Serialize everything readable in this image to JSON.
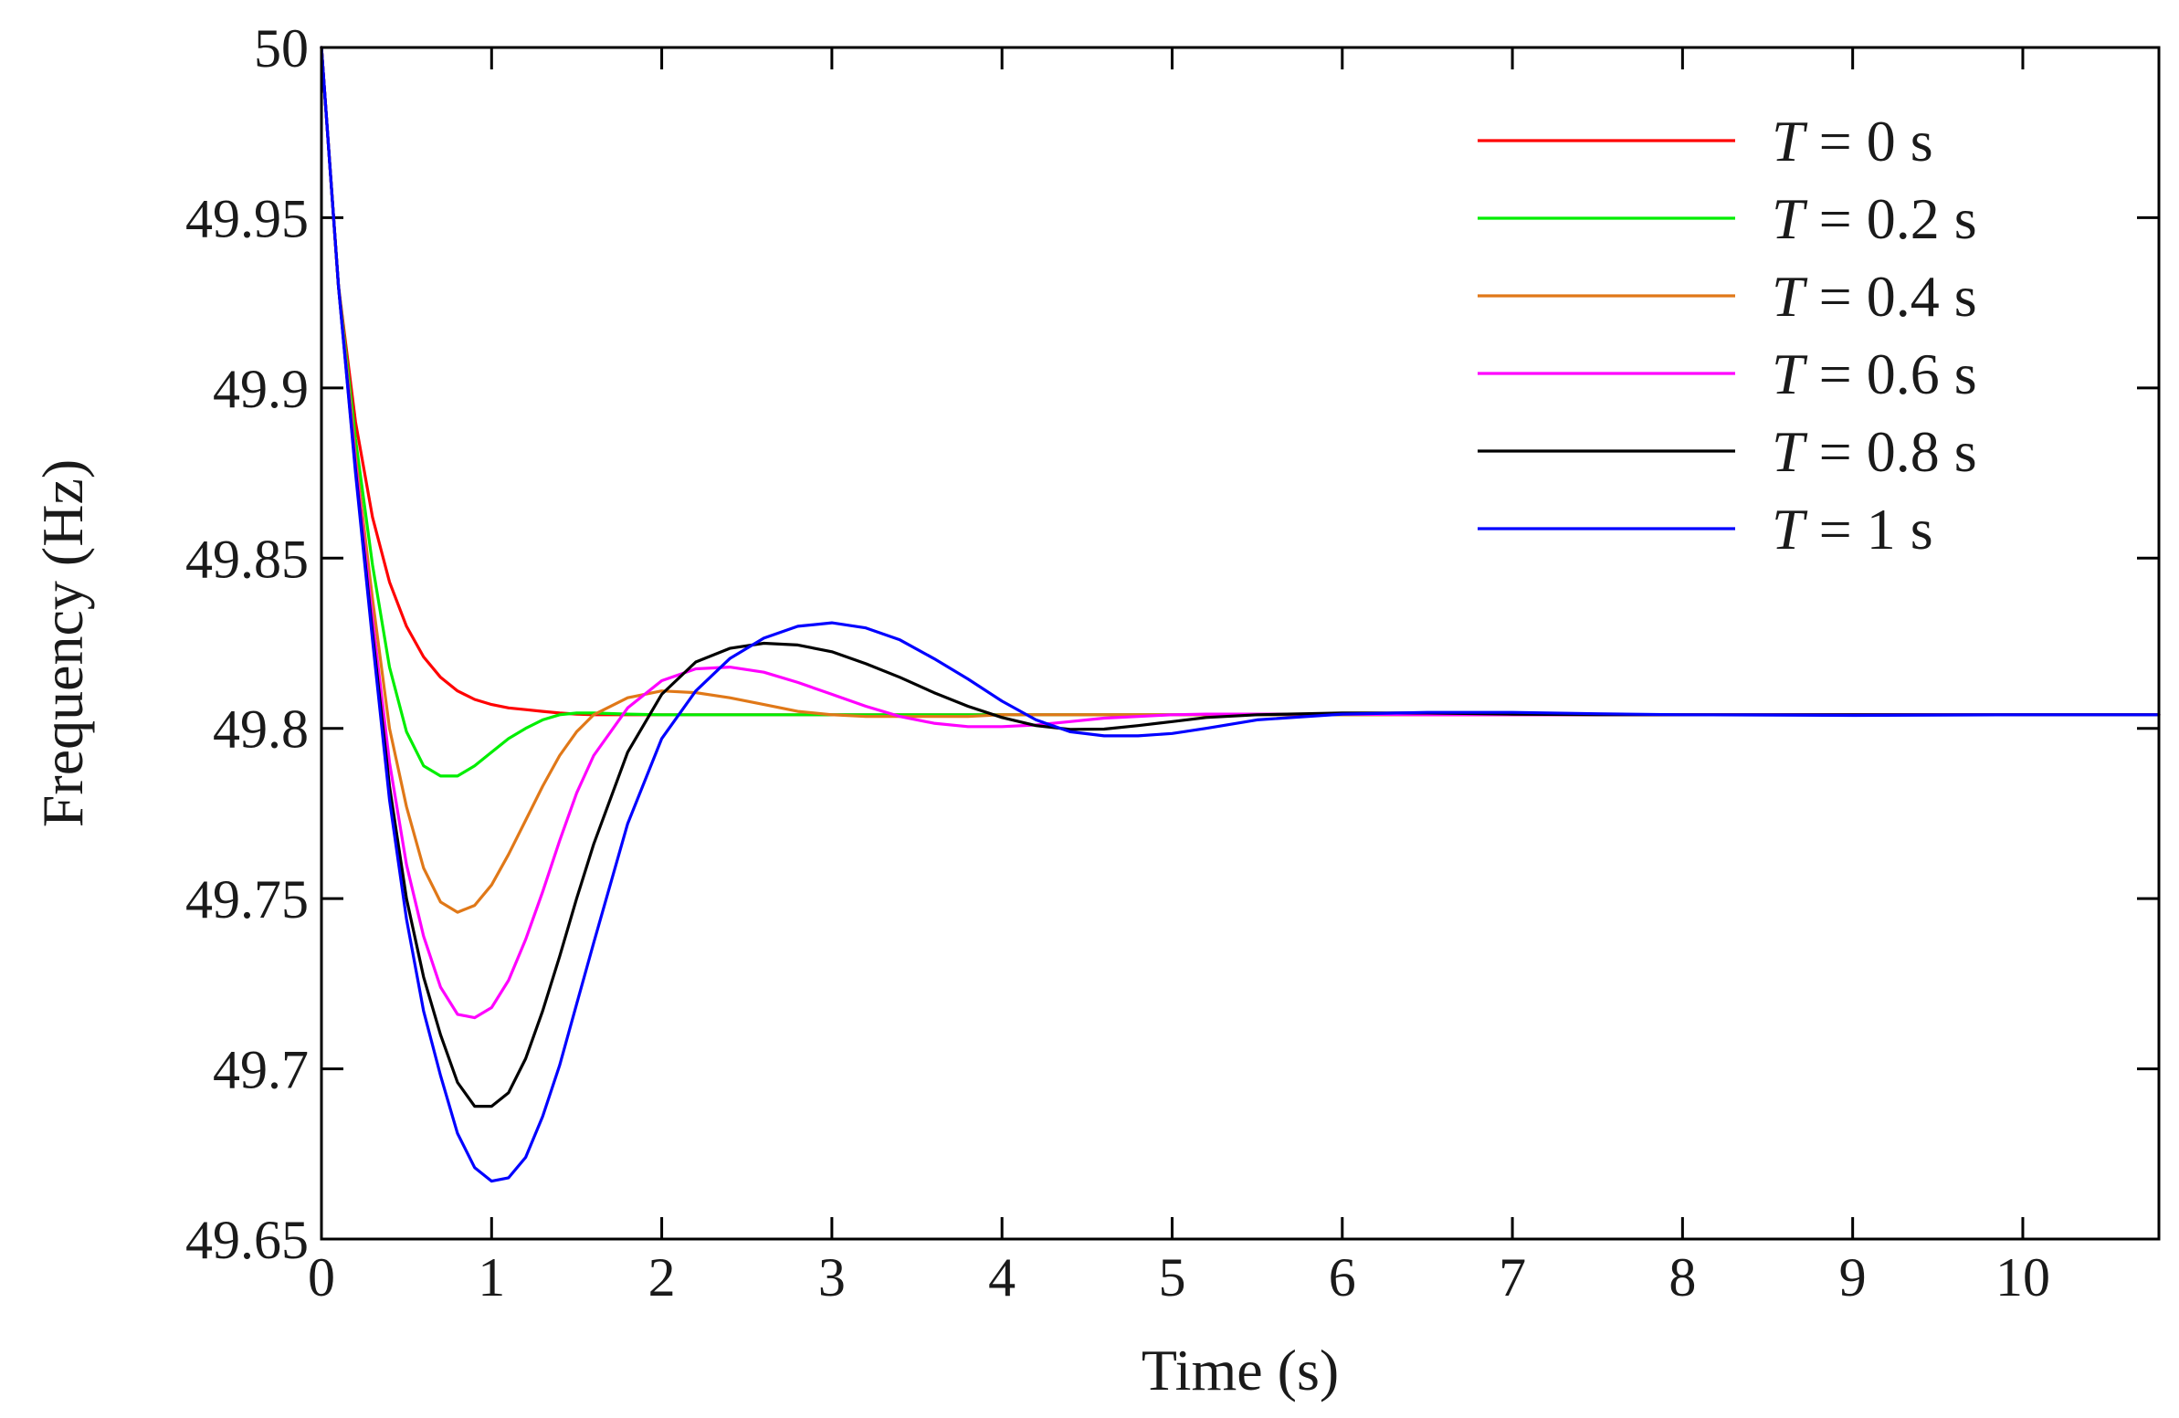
{
  "chart_data": {
    "type": "line",
    "title": "",
    "xlabel": "Time (s)",
    "ylabel": "Frequency (Hz)",
    "xlim": [
      0,
      10.8
    ],
    "ylim": [
      49.65,
      50
    ],
    "x_ticks": [
      0,
      1,
      2,
      3,
      4,
      5,
      6,
      7,
      8,
      9,
      10
    ],
    "x_tick_labels": [
      "0",
      "1",
      "2",
      "3",
      "4",
      "5",
      "6",
      "7",
      "8",
      "9",
      "10"
    ],
    "y_ticks": [
      49.65,
      49.7,
      49.75,
      49.8,
      49.85,
      49.9,
      49.95,
      50
    ],
    "y_tick_labels": [
      "49.65",
      "49.7",
      "49.75",
      "49.8",
      "49.85",
      "49.9",
      "49.95",
      "50"
    ],
    "grid": false,
    "legend_position": "top-right",
    "x": [
      0,
      0.1,
      0.2,
      0.3,
      0.4,
      0.5,
      0.6,
      0.7,
      0.8,
      0.9,
      1.0,
      1.1,
      1.2,
      1.3,
      1.4,
      1.5,
      1.6,
      1.8,
      2.0,
      2.2,
      2.4,
      2.6,
      2.8,
      3.0,
      3.2,
      3.4,
      3.6,
      3.8,
      4.0,
      4.2,
      4.4,
      4.6,
      4.8,
      5.0,
      5.2,
      5.5,
      6.0,
      6.5,
      7.0,
      7.5,
      8.0,
      9.0,
      10.0,
      10.8
    ],
    "series": [
      {
        "name": "T = 0 s",
        "label_prefix": "T",
        "label_suffix": " = 0 s",
        "color": "#ff0000",
        "values": [
          50,
          49.93,
          49.89,
          49.862,
          49.843,
          49.83,
          49.821,
          49.815,
          49.811,
          49.8085,
          49.807,
          49.806,
          49.8055,
          49.805,
          49.8045,
          49.8042,
          49.804,
          49.804,
          49.804,
          49.804,
          49.804,
          49.804,
          49.804,
          49.804,
          49.804,
          49.804,
          49.804,
          49.804,
          49.804,
          49.804,
          49.804,
          49.804,
          49.804,
          49.804,
          49.804,
          49.804,
          49.804,
          49.804,
          49.804,
          49.804,
          49.804,
          49.804,
          49.804,
          49.804
        ]
      },
      {
        "name": "T = 0.2 s",
        "label_prefix": "T",
        "label_suffix": " = 0.2 s",
        "color": "#00ee00",
        "values": [
          50,
          49.93,
          49.885,
          49.848,
          49.818,
          49.799,
          49.789,
          49.786,
          49.786,
          49.789,
          49.793,
          49.797,
          49.8,
          49.8025,
          49.804,
          49.8045,
          49.8045,
          49.8042,
          49.804,
          49.804,
          49.804,
          49.804,
          49.804,
          49.804,
          49.804,
          49.804,
          49.804,
          49.804,
          49.804,
          49.804,
          49.804,
          49.804,
          49.804,
          49.804,
          49.804,
          49.804,
          49.804,
          49.804,
          49.804,
          49.804,
          49.804,
          49.804,
          49.804,
          49.804
        ]
      },
      {
        "name": "T = 0.4 s",
        "label_prefix": "T",
        "label_suffix": " = 0.4 s",
        "color": "#e07818",
        "values": [
          50,
          49.93,
          49.88,
          49.838,
          49.8,
          49.777,
          49.759,
          49.749,
          49.746,
          49.748,
          49.754,
          49.763,
          49.773,
          49.783,
          49.792,
          49.799,
          49.804,
          49.809,
          49.811,
          49.8105,
          49.809,
          49.807,
          49.805,
          49.804,
          49.8035,
          49.8035,
          49.8035,
          49.8035,
          49.804,
          49.804,
          49.804,
          49.804,
          49.804,
          49.804,
          49.804,
          49.804,
          49.804,
          49.804,
          49.804,
          49.804,
          49.804,
          49.804,
          49.804,
          49.804
        ]
      },
      {
        "name": "T = 0.6 s",
        "label_prefix": "T",
        "label_suffix": " = 0.6 s",
        "color": "#ff00ff",
        "values": [
          50,
          49.93,
          49.878,
          49.832,
          49.79,
          49.76,
          49.739,
          49.724,
          49.716,
          49.715,
          49.718,
          49.726,
          49.738,
          49.752,
          49.767,
          49.781,
          49.792,
          49.806,
          49.814,
          49.8175,
          49.818,
          49.8165,
          49.8135,
          49.81,
          49.8065,
          49.8035,
          49.8015,
          49.8005,
          49.8005,
          49.801,
          49.802,
          49.803,
          49.8035,
          49.804,
          49.8042,
          49.8042,
          49.8042,
          49.804,
          49.804,
          49.804,
          49.804,
          49.804,
          49.804,
          49.804
        ]
      },
      {
        "name": "T = 0.8 s",
        "label_prefix": "T",
        "label_suffix": " = 0.8 s",
        "color": "#000000",
        "values": [
          50,
          49.93,
          49.876,
          49.828,
          49.783,
          49.75,
          49.727,
          49.71,
          49.696,
          49.689,
          49.689,
          49.693,
          49.703,
          49.717,
          49.733,
          49.75,
          49.766,
          49.793,
          49.81,
          49.8195,
          49.8235,
          49.825,
          49.8245,
          49.8225,
          49.819,
          49.815,
          49.8105,
          49.8065,
          49.8032,
          49.8008,
          49.7997,
          49.7998,
          49.8008,
          49.802,
          49.8032,
          49.804,
          49.8045,
          49.8045,
          49.8042,
          49.804,
          49.804,
          49.804,
          49.804,
          49.804
        ]
      },
      {
        "name": "T = 1 s",
        "label_prefix": "T",
        "label_suffix": " = 1 s",
        "color": "#0000ff",
        "values": [
          50,
          49.93,
          49.875,
          49.826,
          49.779,
          49.744,
          49.717,
          49.698,
          49.681,
          49.671,
          49.667,
          49.668,
          49.674,
          49.686,
          49.701,
          49.719,
          49.737,
          49.772,
          49.797,
          49.811,
          49.8205,
          49.8265,
          49.83,
          49.831,
          49.8295,
          49.826,
          49.8205,
          49.8145,
          49.808,
          49.8025,
          49.799,
          49.7978,
          49.7978,
          49.7985,
          49.8,
          49.8025,
          49.8042,
          49.8047,
          49.8047,
          49.8043,
          49.804,
          49.8038,
          49.804,
          49.804
        ]
      }
    ]
  }
}
